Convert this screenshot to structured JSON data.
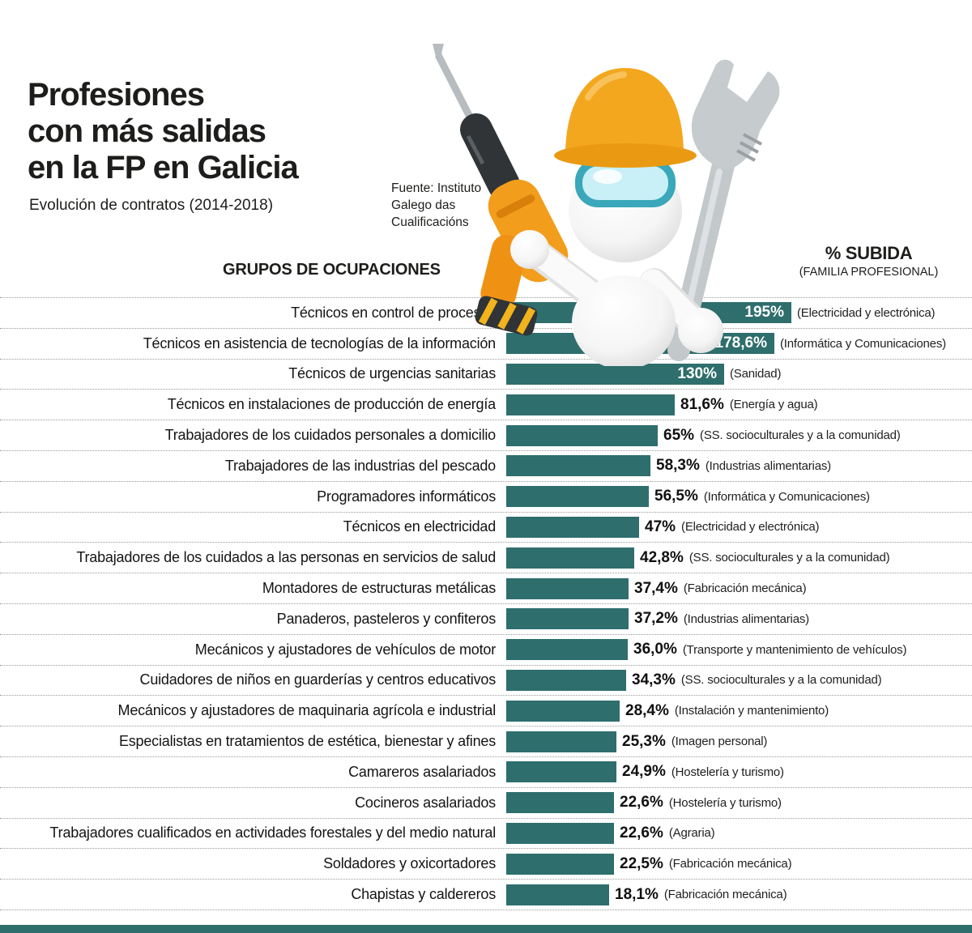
{
  "header": {
    "title": "Profesiones\ncon más salidas\nen la FP en Galicia",
    "subtitle": "Evolución de contratos (2014-2018)",
    "source": "Fuente: Instituto\nGalego das\nCualificacións"
  },
  "columns": {
    "occupations": "GRUPOS DE OCUPACIONES",
    "pct_title": "% SUBIDA",
    "pct_subtitle": "(FAMILIA PROFESIONAL)"
  },
  "colors": {
    "bar": "#2e6e6d",
    "value_inside_text": "#ffffff",
    "value_outside_text": "#101010",
    "helmet": "#f3a71e"
  },
  "chart_data": {
    "type": "bar",
    "orientation": "horizontal",
    "title": "Profesiones con más salidas en la FP en Galicia",
    "subtitle": "Evolución de contratos (2014-2018)",
    "source": "Fuente: Instituto Galego das Cualificacións",
    "xlabel": "% SUBIDA",
    "ylabel": "GRUPOS DE OCUPACIONES",
    "value_unit": "%",
    "value_range": [
      0,
      195
    ],
    "grid": false,
    "rows": [
      {
        "label": "Técnicos en control de procesos",
        "value": 195,
        "value_label": "195%",
        "family": "(Electricidad y electrónica)",
        "value_inside": true
      },
      {
        "label": "Técnicos en asistencia de tecnologías de la información",
        "value": 178.6,
        "value_label": "178,6%",
        "family": "(Informática y Comunicaciones)",
        "value_inside": true
      },
      {
        "label": "Técnicos de urgencias sanitarias",
        "value": 130,
        "value_label": "130%",
        "family": "(Sanidad)",
        "value_inside": true
      },
      {
        "label": "Técnicos en instalaciones de producción de energía",
        "value": 81.6,
        "value_label": "81,6%",
        "family": "(Energía y agua)",
        "value_inside": false
      },
      {
        "label": "Trabajadores de los cuidados personales a domicilio",
        "value": 65,
        "value_label": "65%",
        "family": "(SS. socioculturales y a la comunidad)",
        "value_inside": false
      },
      {
        "label": "Trabajadores de las industrias del pescado",
        "value": 58.3,
        "value_label": "58,3%",
        "family": "(Industrias alimentarias)",
        "value_inside": false
      },
      {
        "label": "Programadores informáticos",
        "value": 56.5,
        "value_label": "56,5%",
        "family": "(Informática y Comunicaciones)",
        "value_inside": false
      },
      {
        "label": "Técnicos en electricidad",
        "value": 47,
        "value_label": "47%",
        "family": "(Electricidad y electrónica)",
        "value_inside": false
      },
      {
        "label": "Trabajadores de los cuidados a las personas en servicios de salud",
        "value": 42.8,
        "value_label": "42,8%",
        "family": "(SS. socioculturales y a la comunidad)",
        "value_inside": false
      },
      {
        "label": "Montadores de estructuras metálicas",
        "value": 37.4,
        "value_label": "37,4%",
        "family": "(Fabricación mecánica)",
        "value_inside": false
      },
      {
        "label": "Panaderos, pasteleros y confiteros",
        "value": 37.2,
        "value_label": "37,2%",
        "family": "(Industrias alimentarias)",
        "value_inside": false
      },
      {
        "label": "Mecánicos y ajustadores de vehículos de motor",
        "value": 36.0,
        "value_label": "36,0%",
        "family": "(Transporte y mantenimiento de vehículos)",
        "value_inside": false
      },
      {
        "label": "Cuidadores de niños en guarderías y centros educativos",
        "value": 34.3,
        "value_label": "34,3%",
        "family": "(SS. socioculturales y a la comunidad)",
        "value_inside": false
      },
      {
        "label": "Mecánicos y ajustadores de maquinaria agrícola e industrial",
        "value": 28.4,
        "value_label": "28,4%",
        "family": "(Instalación y mantenimiento)",
        "value_inside": false
      },
      {
        "label": "Especialistas en tratamientos de estética, bienestar y afines",
        "value": 25.3,
        "value_label": "25,3%",
        "family": "(Imagen personal)",
        "value_inside": false
      },
      {
        "label": "Camareros asalariados",
        "value": 24.9,
        "value_label": "24,9%",
        "family": "(Hostelería y turismo)",
        "value_inside": false
      },
      {
        "label": "Cocineros asalariados",
        "value": 22.6,
        "value_label": "22,6%",
        "family": "(Hostelería y turismo)",
        "value_inside": false
      },
      {
        "label": "Trabajadores cualificados en actividades forestales y del medio natural",
        "value": 22.6,
        "value_label": "22,6%",
        "family": "(Agraria)",
        "value_inside": false
      },
      {
        "label": "Soldadores y oxicortadores",
        "value": 22.5,
        "value_label": "22,5%",
        "family": "(Fabricación mecánica)",
        "value_inside": false
      },
      {
        "label": "Chapistas y caldereros",
        "value": 18.1,
        "value_label": "18,1%",
        "family": "(Fabricación mecánica)",
        "value_inside": false
      }
    ]
  }
}
